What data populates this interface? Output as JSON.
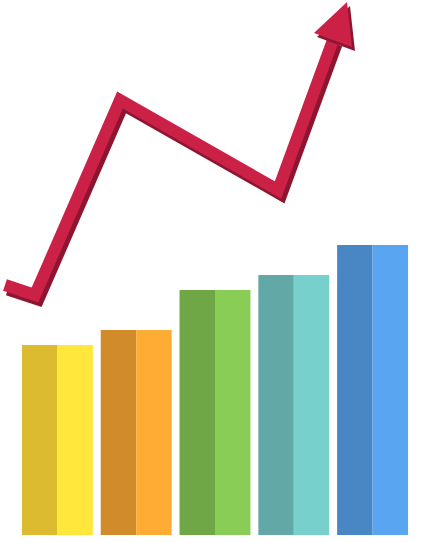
{
  "chart_data": {
    "type": "bar",
    "categories": [
      null,
      null,
      null,
      null,
      null
    ],
    "values": [
      190,
      205,
      245,
      260,
      290
    ],
    "colors": [
      "#f2cc35",
      "#e6982f",
      "#79b54d",
      "#6ab8b5",
      "#4f92d6"
    ],
    "tick_labels": false
  }
}
